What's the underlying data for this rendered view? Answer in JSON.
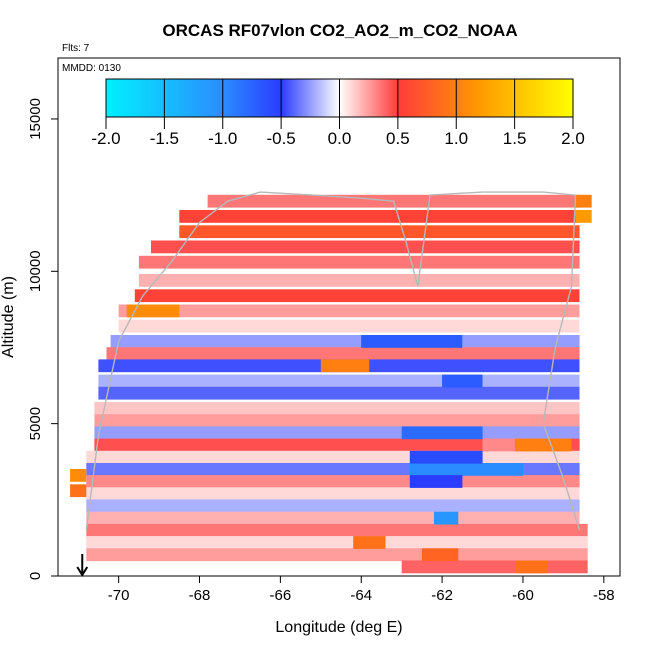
{
  "chart_data": {
    "type": "heatmap",
    "title": "ORCAS RF07vlon CO2_AO2_m_CO2_NOAA",
    "flights_label": "Flts: 7",
    "date_label": "MMDD: 0130",
    "xlabel": "Longitude (deg E)",
    "ylabel": "Altitude (m)",
    "xlim": [
      -71.5,
      -57.6
    ],
    "ylim": [
      0,
      17000
    ],
    "x_ticks": [
      -70,
      -68,
      -66,
      -64,
      -62,
      -60,
      -58
    ],
    "y_ticks": [
      0,
      5000,
      10000,
      15000
    ],
    "colorbar": {
      "range": [
        -2.0,
        2.0
      ],
      "ticks": [
        "-2.0",
        "-1.5",
        "-1.0",
        "-0.5",
        "0.0",
        "0.5",
        "1.0",
        "1.5",
        "2.0"
      ],
      "colors": [
        "#00f0ff",
        "#2b8cff",
        "#2a3cff",
        "#ffffff",
        "#ff3b3b",
        "#ff9a00",
        "#ffff00"
      ]
    },
    "grid": false,
    "marker": {
      "label": "start arrow",
      "x": -70.9,
      "y": 0
    },
    "bands": [
      {
        "alt": 12300,
        "lon": [
          -67.8,
          -58.6
        ],
        "value": 0.35
      },
      {
        "alt": 11800,
        "lon": [
          -68.5,
          -58.6
        ],
        "value": 0.55
      },
      {
        "alt": 11300,
        "lon": [
          -68.5,
          -58.6
        ],
        "value": 0.7
      },
      {
        "alt": 10800,
        "lon": [
          -69.2,
          -58.6
        ],
        "value": 0.45
      },
      {
        "alt": 10300,
        "lon": [
          -69.5,
          -58.6
        ],
        "value": 0.35
      },
      {
        "alt": 9700,
        "lon": [
          -69.5,
          -58.6
        ],
        "value": 0.2
      },
      {
        "alt": 9200,
        "lon": [
          -69.6,
          -58.6
        ],
        "value": 0.55
      },
      {
        "alt": 8700,
        "lon": [
          -70.0,
          -58.6
        ],
        "value": 0.25
      },
      {
        "alt": 8200,
        "lon": [
          -70.0,
          -58.6
        ],
        "value": 0.1
      },
      {
        "alt": 7700,
        "lon": [
          -70.2,
          -58.6
        ],
        "value": -0.25
      },
      {
        "alt": 7300,
        "lon": [
          -70.3,
          -58.6
        ],
        "value": 0.35
      },
      {
        "alt": 6900,
        "lon": [
          -70.5,
          -58.6
        ],
        "value": -0.45
      },
      {
        "alt": 6400,
        "lon": [
          -70.5,
          -58.6
        ],
        "value": -0.2
      },
      {
        "alt": 6000,
        "lon": [
          -70.5,
          -58.6
        ],
        "value": -0.4
      },
      {
        "alt": 5500,
        "lon": [
          -70.6,
          -58.6
        ],
        "value": 0.15
      },
      {
        "alt": 5100,
        "lon": [
          -70.6,
          -58.6
        ],
        "value": 0.25
      },
      {
        "alt": 4700,
        "lon": [
          -70.6,
          -58.6
        ],
        "value": -0.25
      },
      {
        "alt": 4300,
        "lon": [
          -70.6,
          -58.6
        ],
        "value": 0.45
      },
      {
        "alt": 3900,
        "lon": [
          -70.8,
          -58.6
        ],
        "value": 0.1
      },
      {
        "alt": 3500,
        "lon": [
          -70.8,
          -58.6
        ],
        "value": -0.35
      },
      {
        "alt": 3100,
        "lon": [
          -70.8,
          -58.6
        ],
        "value": 0.3
      },
      {
        "alt": 2700,
        "lon": [
          -70.8,
          -58.6
        ],
        "value": 0.1
      },
      {
        "alt": 2300,
        "lon": [
          -70.8,
          -58.6
        ],
        "value": -0.2
      },
      {
        "alt": 1900,
        "lon": [
          -70.8,
          -58.6
        ],
        "value": 0.2
      },
      {
        "alt": 1500,
        "lon": [
          -70.8,
          -58.4
        ],
        "value": 0.35
      },
      {
        "alt": 1100,
        "lon": [
          -70.8,
          -58.4
        ],
        "value": 0.1
      },
      {
        "alt": 700,
        "lon": [
          -70.8,
          -58.4
        ],
        "value": 0.25
      },
      {
        "alt": 300,
        "lon": [
          -63.0,
          -58.4
        ],
        "value": 0.4
      }
    ],
    "patches": [
      {
        "alt": 6900,
        "lon": [
          -65.0,
          -63.8
        ],
        "value": 1.0
      },
      {
        "alt": 8700,
        "lon": [
          -69.8,
          -68.5
        ],
        "value": 1.1
      },
      {
        "alt": 7700,
        "lon": [
          -64.0,
          -61.5
        ],
        "value": -0.7
      },
      {
        "alt": 4700,
        "lon": [
          -63.0,
          -61.0
        ],
        "value": -0.8
      },
      {
        "alt": 4300,
        "lon": [
          -61.0,
          -59.8
        ],
        "value": 0.3
      },
      {
        "alt": 4300,
        "lon": [
          -60.2,
          -58.8
        ],
        "value": 1.0
      },
      {
        "alt": 3500,
        "lon": [
          -62.8,
          -60.0
        ],
        "value": -1.0
      },
      {
        "alt": 3900,
        "lon": [
          -62.8,
          -61.0
        ],
        "value": -0.6
      },
      {
        "alt": 3100,
        "lon": [
          -62.8,
          -61.5
        ],
        "value": -0.5
      },
      {
        "alt": 1900,
        "lon": [
          -62.2,
          -61.6
        ],
        "value": -1.1
      },
      {
        "alt": 3300,
        "lon": [
          -71.2,
          -70.8
        ],
        "value": 1.1
      },
      {
        "alt": 2800,
        "lon": [
          -71.2,
          -70.8
        ],
        "value": 0.9
      },
      {
        "alt": 11800,
        "lon": [
          -58.7,
          -58.3
        ],
        "value": 1.2
      },
      {
        "alt": 12300,
        "lon": [
          -58.7,
          -58.3
        ],
        "value": 1.0
      },
      {
        "alt": 6400,
        "lon": [
          -62.0,
          -61.0
        ],
        "value": -0.7
      },
      {
        "alt": 1100,
        "lon": [
          -64.2,
          -63.4
        ],
        "value": 0.9
      },
      {
        "alt": 700,
        "lon": [
          -62.5,
          -61.6
        ],
        "value": 0.8
      },
      {
        "alt": 300,
        "lon": [
          -60.2,
          -59.4
        ],
        "value": 0.9
      }
    ],
    "flight_track": [
      [
        -70.8,
        1500
      ],
      [
        -70.5,
        4600
      ],
      [
        -70.0,
        7700
      ],
      [
        -69.4,
        9200
      ],
      [
        -68.7,
        10300
      ],
      [
        -68.0,
        11600
      ],
      [
        -67.3,
        12300
      ],
      [
        -66.5,
        12600
      ],
      [
        -65.2,
        12500
      ],
      [
        -64.0,
        12400
      ],
      [
        -63.2,
        12300
      ],
      [
        -62.9,
        11000
      ],
      [
        -62.6,
        9500
      ],
      [
        -62.3,
        12500
      ],
      [
        -61.0,
        12600
      ],
      [
        -59.5,
        12600
      ],
      [
        -58.7,
        12500
      ],
      [
        -58.8,
        9500
      ],
      [
        -59.2,
        7500
      ],
      [
        -59.5,
        5000
      ],
      [
        -59.0,
        3200
      ],
      [
        -58.6,
        1500
      ]
    ]
  }
}
